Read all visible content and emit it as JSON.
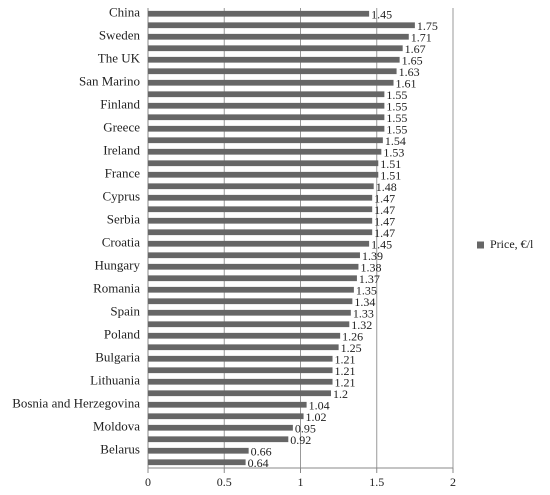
{
  "chart_data": {
    "type": "bar",
    "orientation": "horizontal",
    "categories": [
      "China",
      null,
      "Sweden",
      null,
      "The UK",
      null,
      "San Marino",
      null,
      "Finland",
      null,
      "Greece",
      null,
      "Ireland",
      null,
      "France",
      null,
      "Cyprus",
      null,
      "Serbia",
      null,
      "Croatia",
      null,
      "Hungary",
      null,
      "Romania",
      null,
      "Spain",
      null,
      "Poland",
      null,
      "Bulgaria",
      null,
      "Lithuania",
      null,
      "Bosnia and Herzegovina",
      null,
      "Moldova",
      null,
      "Belarus",
      null
    ],
    "series": [
      {
        "name": "Price, €/l",
        "color": "#666666",
        "values": [
          1.45,
          1.75,
          1.71,
          1.67,
          1.65,
          1.63,
          1.61,
          1.55,
          1.55,
          1.55,
          1.55,
          1.54,
          1.53,
          1.51,
          1.51,
          1.48,
          1.47,
          1.47,
          1.47,
          1.47,
          1.45,
          1.39,
          1.38,
          1.37,
          1.35,
          1.34,
          1.33,
          1.32,
          1.26,
          1.25,
          1.21,
          1.21,
          1.21,
          1.2,
          1.04,
          1.02,
          0.95,
          0.92,
          0.66,
          0.64
        ]
      }
    ],
    "xlim": [
      0,
      2
    ],
    "xticks": [
      0,
      0.5,
      1,
      1.5,
      2
    ],
    "grid": true,
    "legend": "right"
  }
}
